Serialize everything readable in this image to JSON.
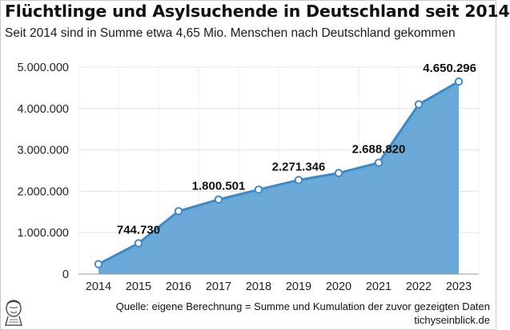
{
  "title": "Flüchtlinge und Asylsuchende in Deutschland seit 2014",
  "subtitle": "Seit 2014 sind in Summe etwa 4,65 Mio. Menschen nach Deutschland gekommen",
  "source": "Quelle: eigene Berechnung = Summe und Kumulation der zuvor gezeigten Daten",
  "site": "tichyseinblick.de",
  "colors": {
    "area": "#6aa8d8",
    "line": "#3f8ac6",
    "marker_fill": "#ffffff",
    "grid": "#e3e3e3"
  },
  "chart_data": {
    "type": "area",
    "title": "Flüchtlinge und Asylsuchende in Deutschland seit 2014",
    "subtitle": "Seit 2014 sind in Summe etwa 4,65 Mio. Menschen nach Deutschland gekommen",
    "categories": [
      "2014",
      "2015",
      "2016",
      "2017",
      "2018",
      "2019",
      "2020",
      "2021",
      "2022",
      "2023"
    ],
    "values": [
      240000,
      744730,
      1520000,
      1800501,
      2040000,
      2271346,
      2440000,
      2688820,
      4100000,
      4650296
    ],
    "data_labels": [
      {
        "index": 1,
        "text": "744.730"
      },
      {
        "index": 3,
        "text": "1.800.501"
      },
      {
        "index": 5,
        "text": "2.271.346"
      },
      {
        "index": 7,
        "text": "2.688.820"
      },
      {
        "index": 9,
        "text": "4.650.296"
      }
    ],
    "y_ticks": [
      0,
      1000000,
      2000000,
      3000000,
      4000000,
      5000000
    ],
    "y_tick_labels": [
      "0",
      "1.000.000",
      "2.000.000",
      "3.000.000",
      "4.000.000",
      "5.000.000"
    ],
    "ylim": [
      0,
      5000000
    ],
    "xlabel": "",
    "ylabel": "",
    "grid": true,
    "legend": "none"
  }
}
